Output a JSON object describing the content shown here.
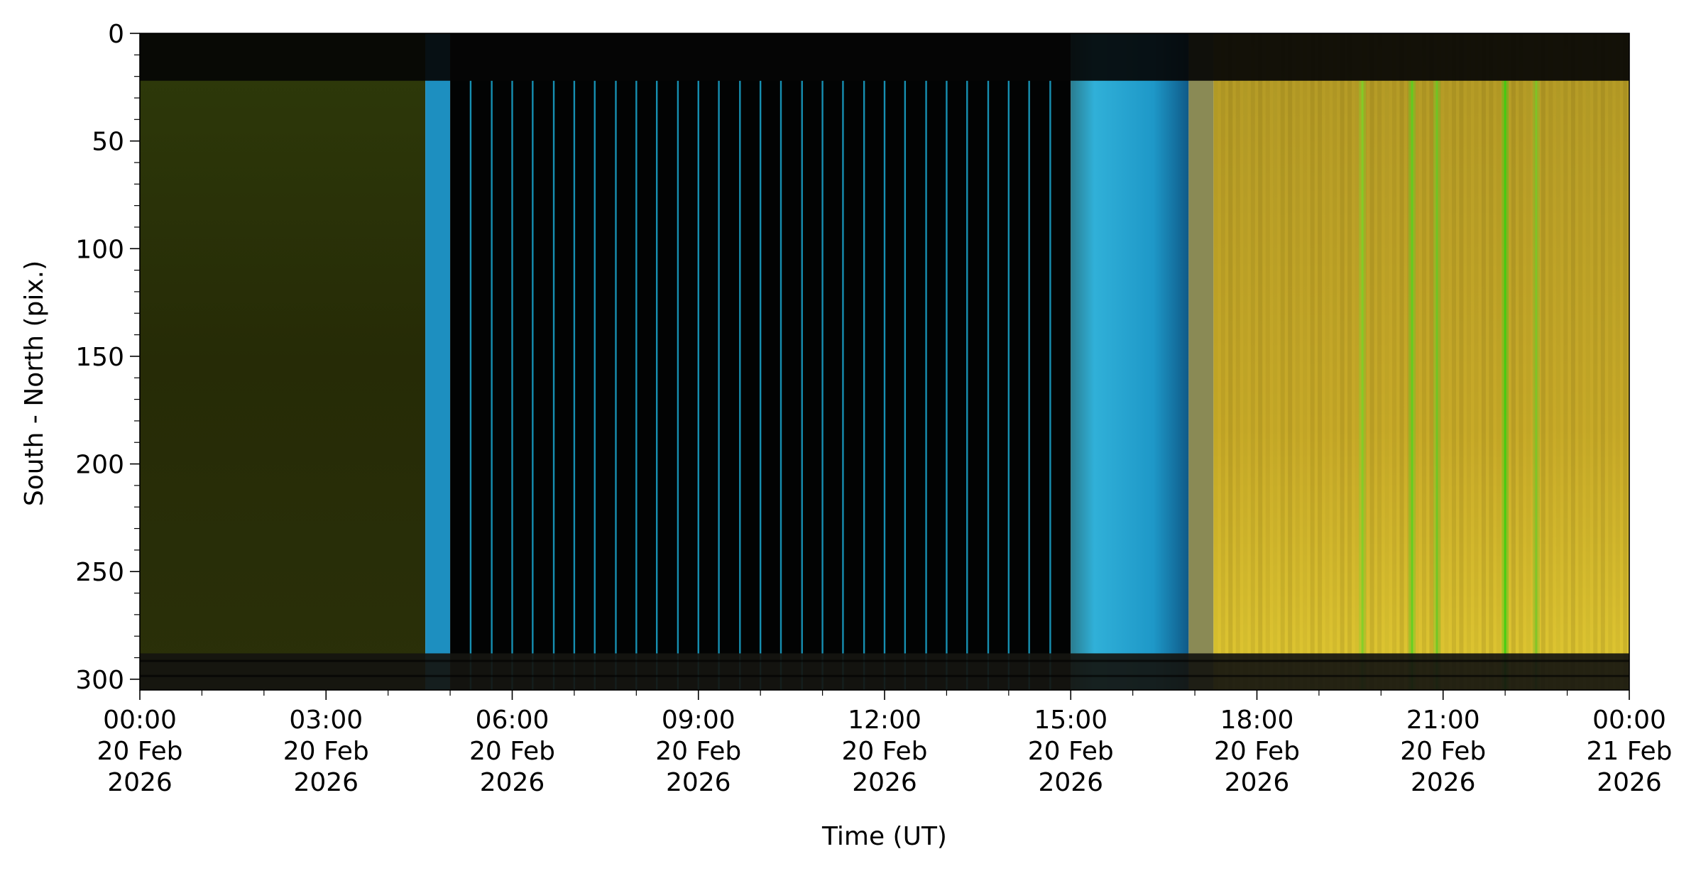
{
  "chart_data": {
    "type": "heatmap",
    "title": "",
    "xlabel": "Time (UT)",
    "ylabel": "South - North (pix.)",
    "x_range_hours": [
      0,
      24
    ],
    "ylim": [
      0,
      305
    ],
    "y_inverted": true,
    "grid": false,
    "legend": "none",
    "y_ticks": [
      0,
      50,
      100,
      150,
      200,
      250,
      300
    ],
    "x_ticks": [
      {
        "hour": 0,
        "lines": [
          "00:00",
          "20 Feb",
          "2026"
        ]
      },
      {
        "hour": 3,
        "lines": [
          "03:00",
          "20 Feb",
          "2026"
        ]
      },
      {
        "hour": 6,
        "lines": [
          "06:00",
          "20 Feb",
          "2026"
        ]
      },
      {
        "hour": 9,
        "lines": [
          "09:00",
          "20 Feb",
          "2026"
        ]
      },
      {
        "hour": 12,
        "lines": [
          "12:00",
          "20 Feb",
          "2026"
        ]
      },
      {
        "hour": 15,
        "lines": [
          "15:00",
          "20 Feb",
          "2026"
        ]
      },
      {
        "hour": 18,
        "lines": [
          "18:00",
          "20 Feb",
          "2026"
        ]
      },
      {
        "hour": 21,
        "lines": [
          "21:00",
          "20 Feb",
          "2026"
        ]
      },
      {
        "hour": 24,
        "lines": [
          "00:00",
          "21 Feb",
          "2026"
        ]
      }
    ],
    "x_minor_step_hours": 1,
    "y_minor_step": 10,
    "segments": [
      {
        "name": "night-early",
        "start_hour": 0.0,
        "end_hour": 4.6,
        "color": "#2a2f08",
        "edge_color": "#3a6a80"
      },
      {
        "name": "twilight-early",
        "start_hour": 4.6,
        "end_hour": 5.0,
        "color": "#1d8fc0"
      },
      {
        "name": "daytime",
        "start_hour": 5.0,
        "end_hour": 15.0,
        "color": "#020303"
      },
      {
        "name": "twilight-late",
        "start_hour": 15.0,
        "end_hour": 16.9,
        "color": "#1fa0cc"
      },
      {
        "name": "twilight-fade",
        "start_hour": 16.9,
        "end_hour": 17.3,
        "color": "#8a8a55"
      },
      {
        "name": "night-late",
        "start_hour": 17.3,
        "end_hour": 24.0,
        "color": "#c8aa28"
      }
    ],
    "sparse_line_hours": [
      5.33,
      5.67,
      6.0,
      6.33,
      6.67,
      7.0,
      7.33,
      7.67,
      8.0,
      8.33,
      8.67,
      9.0,
      9.33,
      9.67,
      10.0,
      10.33,
      10.67,
      11.0,
      11.33,
      11.67,
      12.0,
      12.33,
      12.67,
      13.0,
      13.33,
      13.67,
      14.0,
      14.33,
      14.67
    ],
    "sparse_line_color": "#1aa8d0",
    "aurora_streaks": [
      {
        "hour": 19.7,
        "color": "#7fd028"
      },
      {
        "hour": 20.5,
        "color": "#5ad020"
      },
      {
        "hour": 20.9,
        "color": "#6ac824"
      },
      {
        "hour": 22.0,
        "color": "#3ad010"
      },
      {
        "hour": 22.5,
        "color": "#7ac828"
      }
    ],
    "horizontal_bands": [
      {
        "y_from": 0,
        "y_to": 22,
        "color": "#050505"
      },
      {
        "y_from": 288,
        "y_to": 305,
        "color": "#151510"
      }
    ]
  }
}
